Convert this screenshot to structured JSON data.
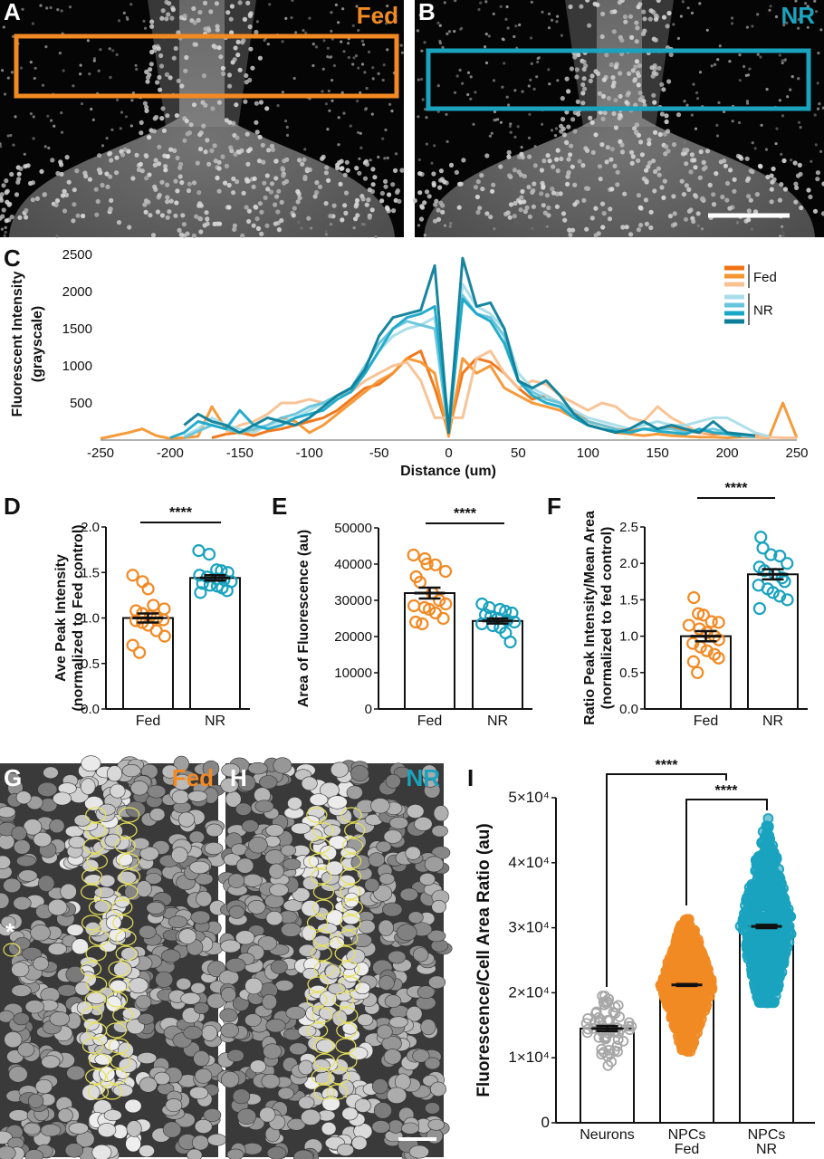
{
  "panels": {
    "A": {
      "letter": "A",
      "condition": "Fed"
    },
    "B": {
      "letter": "B",
      "condition": "NR"
    },
    "C": {
      "letter": "C"
    },
    "D": {
      "letter": "D"
    },
    "E": {
      "letter": "E"
    },
    "F": {
      "letter": "F"
    },
    "G": {
      "letter": "G",
      "condition": "Fed",
      "asterisk": "*"
    },
    "H": {
      "letter": "H",
      "condition": "NR"
    },
    "I": {
      "letter": "I"
    }
  },
  "colors": {
    "fed": "#f28a24",
    "nr": "#1aa3bf",
    "neurons": "#a6a6a6",
    "roi_outline": "#e6e05a"
  },
  "chart_data": [
    {
      "id": "C",
      "type": "line",
      "xlabel": "Distance (um)",
      "ylabel": [
        "Fluorescent Intensity",
        "(grayscale)"
      ],
      "xlim": [
        -250,
        250
      ],
      "ylim": [
        0,
        2500
      ],
      "xticks": [
        "-250",
        "-200",
        "-150",
        "-100",
        "-50",
        "0",
        "50",
        "100",
        "150",
        "200",
        "250"
      ],
      "yticks": [
        "500",
        "1000",
        "1500",
        "2000",
        "2500"
      ],
      "legend": {
        "position": "top-right",
        "groups": [
          {
            "label": "Fed",
            "colors": [
              "#f07212",
              "#f5952f",
              "#f8c190"
            ]
          },
          {
            "label": "NR",
            "colors": [
              "#a9dde9",
              "#66c4db",
              "#19a8c8",
              "#0c7e99"
            ]
          }
        ]
      },
      "x": [
        -250,
        -240,
        -230,
        -220,
        -210,
        -200,
        -190,
        -180,
        -170,
        -160,
        -150,
        -140,
        -130,
        -120,
        -110,
        -100,
        -90,
        -80,
        -70,
        -60,
        -50,
        -40,
        -30,
        -20,
        -10,
        0,
        10,
        20,
        30,
        40,
        50,
        60,
        70,
        80,
        90,
        100,
        110,
        120,
        130,
        140,
        150,
        160,
        170,
        180,
        190,
        200,
        210,
        220,
        230,
        240,
        250
      ],
      "series": [
        {
          "group": "Fed",
          "color": "#f07212",
          "values": [
            null,
            null,
            null,
            null,
            null,
            null,
            null,
            null,
            30,
            80,
            100,
            60,
            120,
            150,
            200,
            250,
            300,
            400,
            550,
            700,
            750,
            900,
            1100,
            1200,
            700,
            100,
            900,
            1100,
            1050,
            900,
            700,
            550,
            600,
            500,
            400,
            250,
            200,
            150,
            120,
            150,
            150,
            180,
            120,
            100,
            80,
            90,
            70,
            60,
            50,
            null,
            null
          ]
        },
        {
          "group": "Fed",
          "color": "#f5952f",
          "values": [
            20,
            60,
            100,
            150,
            60,
            20,
            30,
            50,
            450,
            150,
            100,
            120,
            200,
            300,
            250,
            100,
            200,
            350,
            500,
            650,
            800,
            900,
            1100,
            1050,
            900,
            50,
            1100,
            900,
            1000,
            700,
            600,
            500,
            450,
            400,
            300,
            200,
            150,
            100,
            80,
            60,
            80,
            60,
            50,
            40,
            40,
            30,
            40,
            40,
            30,
            500,
            30
          ]
        },
        {
          "group": "Fed",
          "color": "#f8c190",
          "values": [
            null,
            null,
            null,
            null,
            null,
            null,
            null,
            null,
            null,
            100,
            200,
            250,
            350,
            500,
            500,
            550,
            500,
            600,
            650,
            800,
            900,
            1000,
            1050,
            800,
            300,
            300,
            300,
            1100,
            1200,
            900,
            700,
            800,
            750,
            600,
            500,
            400,
            500,
            450,
            300,
            250,
            450,
            300,
            200,
            100,
            100,
            80,
            60,
            50,
            40,
            30,
            30
          ]
        },
        {
          "group": "NR",
          "color": "#a9dde9",
          "values": [
            null,
            null,
            null,
            null,
            null,
            null,
            50,
            150,
            300,
            200,
            150,
            100,
            200,
            250,
            300,
            400,
            500,
            600,
            700,
            900,
            1200,
            1400,
            1500,
            1550,
            1650,
            300,
            2100,
            1800,
            1700,
            1500,
            900,
            700,
            600,
            500,
            400,
            300,
            250,
            200,
            150,
            200,
            250,
            200,
            200,
            250,
            300,
            300,
            200,
            100,
            50,
            null,
            null
          ]
        },
        {
          "group": "NR",
          "color": "#66c4db",
          "values": [
            null,
            null,
            null,
            null,
            null,
            null,
            30,
            120,
            200,
            150,
            100,
            150,
            200,
            300,
            350,
            450,
            500,
            600,
            700,
            1000,
            1300,
            1500,
            1600,
            1550,
            1500,
            100,
            1950,
            1700,
            1650,
            1400,
            800,
            650,
            550,
            500,
            350,
            250,
            200,
            150,
            100,
            150,
            150,
            150,
            100,
            120,
            150,
            100,
            60,
            40,
            null,
            null,
            null
          ]
        },
        {
          "group": "NR",
          "color": "#19a8c8",
          "values": [
            null,
            null,
            null,
            null,
            null,
            30,
            100,
            250,
            200,
            150,
            400,
            200,
            150,
            200,
            300,
            350,
            400,
            550,
            650,
            900,
            1200,
            1500,
            1650,
            1700,
            1800,
            150,
            1900,
            1700,
            1600,
            1300,
            800,
            600,
            500,
            450,
            300,
            200,
            150,
            120,
            100,
            150,
            120,
            100,
            80,
            150,
            100,
            80,
            50,
            null,
            null,
            null,
            null
          ]
        },
        {
          "group": "NR",
          "color": "#0c7e99",
          "values": [
            null,
            null,
            null,
            null,
            null,
            null,
            200,
            350,
            250,
            200,
            100,
            200,
            300,
            250,
            200,
            300,
            450,
            600,
            700,
            950,
            1400,
            1650,
            1700,
            1750,
            2350,
            100,
            2450,
            1800,
            1850,
            1500,
            800,
            700,
            800,
            600,
            350,
            200,
            150,
            100,
            150,
            250,
            150,
            200,
            150,
            100,
            250,
            100,
            80,
            60,
            null,
            null,
            null
          ]
        }
      ]
    },
    {
      "id": "D",
      "type": "bar",
      "ylabel": [
        "Ave Peak Intensity",
        "(normalized to Fed control)"
      ],
      "ylim": [
        0,
        2.0
      ],
      "yticks": [
        "0.0",
        "0.5",
        "1.0",
        "1.5",
        "2.0"
      ],
      "categories": [
        "Fed",
        "NR"
      ],
      "means": [
        1.0,
        1.44
      ],
      "sem": [
        0.05,
        0.03
      ],
      "points": [
        [
          1.47,
          1.4,
          1.32,
          1.14,
          1.1,
          1.08,
          1.05,
          1.02,
          1.0,
          0.98,
          0.97,
          0.95,
          0.92,
          0.86,
          0.8,
          0.7,
          0.62
        ],
        [
          1.74,
          1.7,
          1.53,
          1.52,
          1.5,
          1.47,
          1.45,
          1.43,
          1.42,
          1.4,
          1.38,
          1.36,
          1.35,
          1.33,
          1.3,
          1.28
        ]
      ],
      "significance": "****"
    },
    {
      "id": "E",
      "type": "bar",
      "ylabel": [
        "Area of Fluorescence (au)"
      ],
      "ylim": [
        0,
        50000
      ],
      "yticks": [
        "0",
        "10000",
        "20000",
        "30000",
        "40000",
        "50000"
      ],
      "categories": [
        "Fed",
        "NR"
      ],
      "means": [
        32000,
        24300
      ],
      "sem": [
        1500,
        700
      ],
      "points": [
        [
          42500,
          41500,
          40000,
          39800,
          38000,
          36500,
          35000,
          32000,
          30000,
          29000,
          28500,
          28000,
          27500,
          26500,
          25000,
          24000,
          23500
        ],
        [
          29000,
          28000,
          27500,
          27000,
          26500,
          26000,
          25500,
          25000,
          24500,
          24000,
          23500,
          23000,
          22500,
          21000,
          18500
        ]
      ],
      "significance": "****"
    },
    {
      "id": "F",
      "type": "bar",
      "ylabel": [
        "Ratio Peak Intensity/Mean Area",
        "(normalized to fed control)"
      ],
      "ylim": [
        0,
        2.5
      ],
      "yticks": [
        "0.0",
        "0.5",
        "1.0",
        "1.5",
        "2.0",
        "2.5"
      ],
      "categories": [
        "Fed",
        "NR"
      ],
      "means": [
        1.0,
        1.85
      ],
      "sem": [
        0.07,
        0.07
      ],
      "points": [
        [
          1.53,
          1.31,
          1.29,
          1.2,
          1.19,
          1.15,
          1.1,
          1.05,
          1.0,
          0.95,
          0.9,
          0.85,
          0.8,
          0.75,
          0.7,
          0.65,
          0.5
        ],
        [
          2.36,
          2.21,
          2.12,
          2.1,
          2.0,
          1.95,
          1.9,
          1.85,
          1.8,
          1.75,
          1.7,
          1.65,
          1.6,
          1.55,
          1.5,
          1.38
        ]
      ],
      "significance": "****"
    },
    {
      "id": "I",
      "type": "bar",
      "ylabel": [
        "Fluorescence/Cell Area Ratio (au)"
      ],
      "ylim": [
        0,
        50000
      ],
      "yticks": [
        "0",
        "1×10⁴",
        "2×10⁴",
        "3×10⁴",
        "4×10⁴",
        "5×10⁴"
      ],
      "categories": [
        "Neurons",
        "NPCs\nFed",
        "NPCs\nNR"
      ],
      "category_lines": [
        [
          "Neurons"
        ],
        [
          "NPCs",
          "Fed"
        ],
        [
          "NPCs",
          "NR"
        ]
      ],
      "means": [
        14500,
        21200,
        30200
      ],
      "sem": [
        400,
        150,
        250
      ],
      "ranges": [
        [
          8800,
          19500
        ],
        [
          11000,
          31300
        ],
        [
          18500,
          46800
        ]
      ],
      "comparisons": [
        {
          "from": "Neurons",
          "to": "NPCs Fed/NR",
          "label": "****"
        },
        {
          "from": "NPCs Fed",
          "to": "NPCs NR",
          "label": "****"
        }
      ]
    }
  ]
}
